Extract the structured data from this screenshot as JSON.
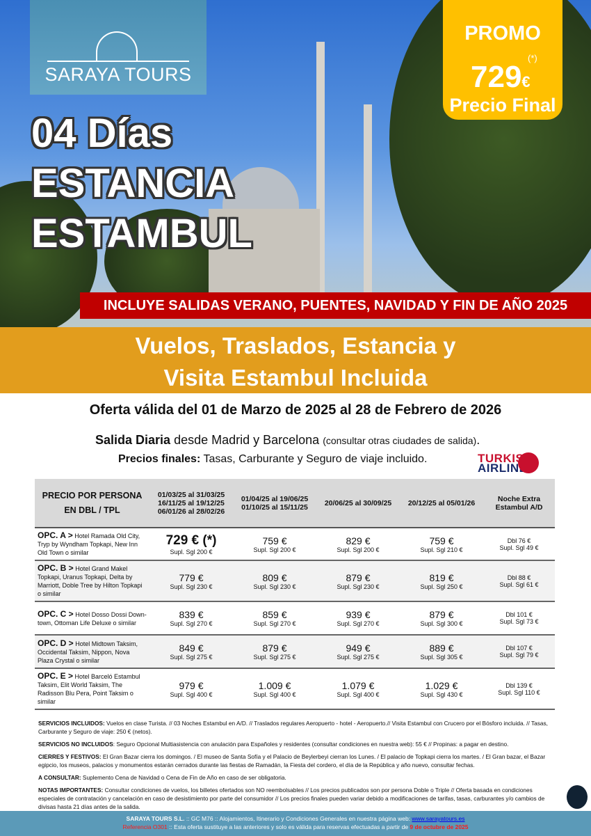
{
  "brand": {
    "name": "SARAYA TOURS"
  },
  "promo": {
    "label": "PROMO",
    "asterisk": "(*)",
    "price": "729",
    "currency": "€",
    "final": "Precio Final"
  },
  "title": {
    "line1": "04 Días",
    "line2": "ESTANCIA",
    "line3": "ESTAMBUL"
  },
  "banner": "INCLUYE SALIDAS VERANO, PUENTES, NAVIDAD Y FIN DE AÑO 2025",
  "subtitle": {
    "line1": "Vuelos, Traslados, Estancia y",
    "line2": "Visita Estambul Incluida"
  },
  "validity": "Oferta válida del 01 de Marzo de 2025 al 28 de Febrero de 2026",
  "departure": {
    "bold": "Salida Diaria",
    "text": " desde Madrid y Barcelona ",
    "small": "(consultar otras ciudades de salida)",
    "end": "."
  },
  "prices_note": {
    "bold": "Precios finales:",
    "text": " Tasas, Carburante y Seguro de viaje incluido."
  },
  "airline": {
    "line1": "TURKISH",
    "line2": "AIRLINES"
  },
  "table": {
    "headers": [
      "PRECIO POR PERSONA\nEN DBL / TPL",
      "01/03/25 al 31/03/25\n16/11/25 al 19/12/25\n06/01/26 al 28/02/26",
      "01/04/25 al 19/06/25\n01/10/25 al 15/11/25",
      "20/06/25 al 30/09/25",
      "20/12/25 al 05/01/26",
      "Noche Extra\nEstambul A/D"
    ],
    "rows": [
      {
        "opt": "OPC. A >",
        "hotels": " Hotel Ramada Old City, Tryp by Wyndham Topkapi, New Inn Old Town o similar",
        "prices": [
          "729 € (*)",
          "759 €",
          "829 €",
          "759 €"
        ],
        "supl": [
          "Supl. Sgl 200 €",
          "Supl. Sgl 200 €",
          "Supl. Sgl 200 €",
          "Supl. Sgl 210 €"
        ],
        "extra": [
          "Dbl 76 €",
          "Supl. Sgl 49 €"
        ]
      },
      {
        "opt": "OPC. B >",
        "hotels": " Hotel Grand Makel Topkapi, Uranus Topkapi, Delta by Marriott, Doble Tree by Hilton Topkapi o similar",
        "prices": [
          "779 €",
          "809 €",
          "879 €",
          "819 €"
        ],
        "supl": [
          "Supl. Sgl 230 €",
          "Supl. Sgl 230 €",
          "Supl. Sgl 230 €",
          "Supl. Sgl 250 €"
        ],
        "extra": [
          "Dbl 88 €",
          "Supl. Sgl 61 €"
        ]
      },
      {
        "opt": "OPC. C >",
        "hotels": " Hotel Dosso Dossi Down-town, Ottoman Life Deluxe o similar",
        "prices": [
          "839 €",
          "859 €",
          "939 €",
          "879 €"
        ],
        "supl": [
          "Supl. Sgl 270 €",
          "Supl. Sgl 270 €",
          "Supl. Sgl 270 €",
          "Supl. Sgl 300 €"
        ],
        "extra": [
          "Dbl 101 €",
          "Supl. Sgl 73 €"
        ]
      },
      {
        "opt": "OPC. D >",
        "hotels": " Hotel Midtown Taksim, Occidental Taksim, Nippon, Nova Plaza Crystal o similar",
        "prices": [
          "849 €",
          "879 €",
          "949 €",
          "889 €"
        ],
        "supl": [
          "Supl. Sgl 275 €",
          "Supl. Sgl 275 €",
          "Supl. Sgl 275 €",
          "Supl. Sgl 305 €"
        ],
        "extra": [
          "Dbl 107 €",
          "Supl. Sgl 79 €"
        ]
      },
      {
        "opt": "OPC. E >",
        "hotels": " Hotel Barceló Estambul Taksim, Elit World Taksim, The Radisson Blu Pera, Point Taksim o similar",
        "prices": [
          "979 €",
          "1.009 €",
          "1.079 €",
          "1.029 €"
        ],
        "supl": [
          "Supl. Sgl 400 €",
          "Supl. Sgl 400 €",
          "Supl. Sgl 400 €",
          "Supl. Sgl 430 €"
        ],
        "extra": [
          "Dbl 139 €",
          "Supl. Sgl 110 €"
        ]
      }
    ]
  },
  "notes": [
    {
      "label": "SERVICIOS INCLUIDOS:",
      "text": " Vuelos en clase Turista. // 03 Noches Estambul en A/D. // Traslados regulares Aeropuerto - hotel - Aeropuerto.// Visita Estambul con Crucero por el Bósforo incluida. // Tasas, Carburante y Seguro de viaje: 250 € (netos)."
    },
    {
      "label": "SERVICIOS NO INCLUIDOS",
      "text": ": Seguro Opcional Multiasistencia con anulación para Españoles y residentes (consultar condiciones en nuestra web): 55 € // Propinas: a pagar en destino."
    },
    {
      "label": "CIERRES Y FESTIVOS:",
      "text": " El Gran Bazar cierra los domingos. / El museo de Santa Sofía y el Palacio de Beylerbeyi cierran los Lunes. / El palacio de Topkapi cierra los martes. / El Gran bazar, el Bazar egipcio, los museos, palacios y monumentos estarán cerrados durante las fiestas de Ramadán, la Fiesta del cordero, el día de la República y año nuevo, consultar fechas."
    },
    {
      "label": "A CONSULTAR:",
      "text": " Suplemento Cena de Navidad o Cena de Fin de Año en caso de ser obligatoria."
    },
    {
      "label": "NOTAS IMPORTANTES:",
      "text": " Consultar condiciones de vuelos, los billetes ofertados son NO reembolsables // Los precios publicados son por persona Doble o Triple // Oferta basada en condiciones especiales de contratación y cancelación en caso de desistimiento por parte del consumidor // Los precios finales pueden variar debido a modificaciones de tarifas, tasas, carburantes y/o cambios de divisas hasta 21 días antes de la salida."
    }
  ],
  "footer": {
    "company": "SARAYA TOURS S.L.",
    "text1": " :: GC M76 ::  Alojamientos, Itinerario y Condiciones Generales en nuestra página web:  ",
    "link": "www.sarayatours.es",
    "ref": "Referencia O301",
    "text2": " :: Esta oferta sustituye a las anteriores y solo es válida para reservas efectuadas a partir de ",
    "date": "9 de octubre de 2025"
  },
  "colors": {
    "orange": "#e29d1d",
    "promo": "#ffc000",
    "red": "#c00000",
    "footer": "#5b9ab8"
  }
}
